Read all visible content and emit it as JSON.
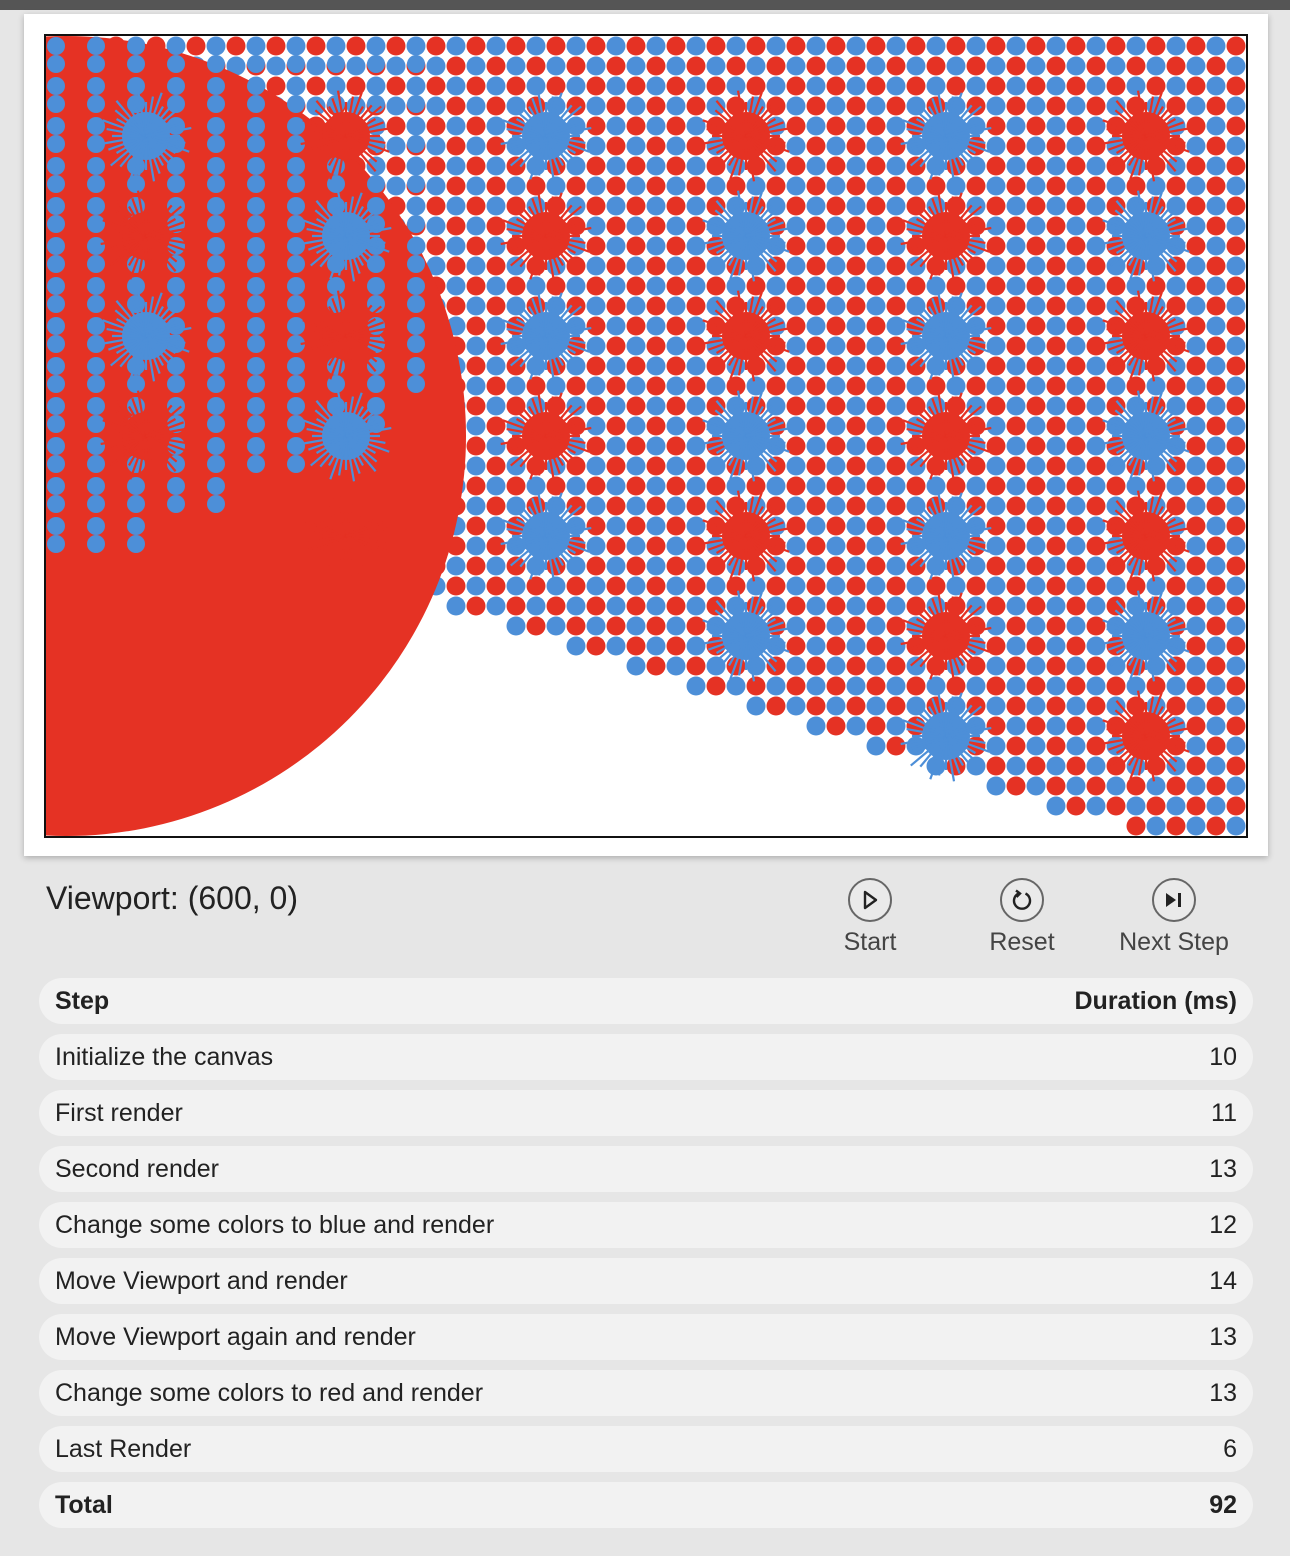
{
  "viewport_label": "Viewport: (600, 0)",
  "controls": {
    "start": "Start",
    "reset": "Reset",
    "next_step": "Next Step"
  },
  "colors": {
    "red": "#e53224",
    "blue": "#4d8fd8",
    "page_bg": "#e6e6e6",
    "row_bg": "#f2f2f2"
  },
  "table": {
    "header": {
      "step": "Step",
      "duration": "Duration (ms)"
    },
    "rows": [
      {
        "step": "Initialize the canvas",
        "duration": "10"
      },
      {
        "step": "First render",
        "duration": "11"
      },
      {
        "step": "Second render",
        "duration": "13"
      },
      {
        "step": "Change some colors to blue and render",
        "duration": "12"
      },
      {
        "step": "Move Viewport and render",
        "duration": "14"
      },
      {
        "step": "Move Viewport again and render",
        "duration": "13"
      },
      {
        "step": "Change some colors to red and render",
        "duration": "13"
      },
      {
        "step": "Last Render",
        "duration": "6"
      }
    ],
    "total": {
      "step": "Total",
      "duration": "92"
    }
  }
}
